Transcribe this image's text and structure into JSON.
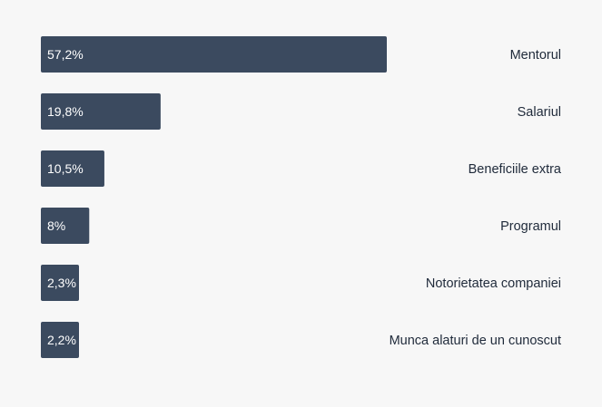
{
  "chart_data": {
    "type": "bar",
    "orientation": "horizontal",
    "categories": [
      "Mentorul",
      "Salariul",
      "Beneficiile extra",
      "Programul",
      "Notorietatea companiei",
      "Munca alaturi de un cunoscut"
    ],
    "values": [
      57.2,
      19.8,
      10.5,
      8,
      2.3,
      2.2
    ],
    "value_labels": [
      "57,2%",
      "19,8%",
      "10,5%",
      "8%",
      "2,3%",
      "2,2%"
    ],
    "xlim": [
      0,
      57.2
    ],
    "title": "",
    "xlabel": "",
    "ylabel": "",
    "grid": false,
    "legend": "none",
    "bar_color": "#3b4a5f",
    "background_color": "#f7f7f7"
  }
}
